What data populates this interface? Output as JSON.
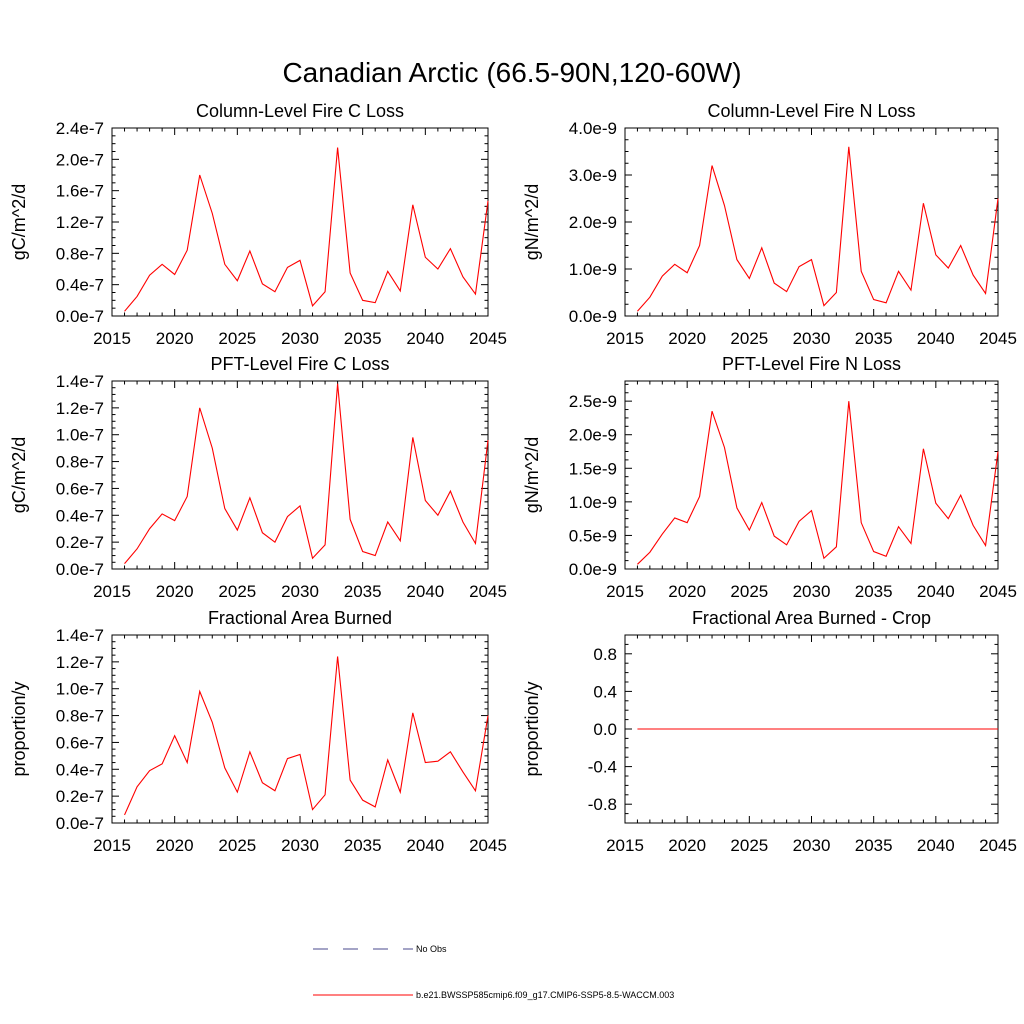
{
  "figure_title": "Canadian Arctic (66.5-90N,120-60W)",
  "chart_data": [
    {
      "type": "line",
      "title": "Column-Level Fire C Loss",
      "xlabel": "",
      "ylabel": "gC/m^2/d",
      "xlim": [
        2015,
        2045
      ],
      "ylim": [
        0,
        2.4e-07
      ],
      "yticks": [
        0,
        4e-08,
        8e-08,
        1.2e-07,
        1.6e-07,
        2e-07,
        2.4e-07
      ],
      "ytick_labels": [
        "0.0e-7",
        "0.4e-7",
        "0.8e-7",
        "1.2e-7",
        "1.6e-7",
        "2.0e-7",
        "2.4e-7"
      ],
      "xticks": [
        2015,
        2020,
        2025,
        2030,
        2035,
        2040,
        2045
      ],
      "xtick_labels": [
        "2015",
        "2020",
        "2025",
        "2030",
        "2035",
        "2040",
        "2045"
      ],
      "series": [
        {
          "name": "b.e21.BWSSP585cmip6.f09_g17.CMIP6-SSP5-8.5-WACCM.003",
          "color": "#ff0000",
          "x": [
            2016,
            2017,
            2018,
            2019,
            2020,
            2021,
            2022,
            2023,
            2024,
            2025,
            2026,
            2027,
            2028,
            2029,
            2030,
            2031,
            2032,
            2033,
            2034,
            2035,
            2036,
            2037,
            2038,
            2039,
            2040,
            2041,
            2042,
            2043,
            2044,
            2045
          ],
          "values": [
            6e-09,
            2.5e-08,
            5.2e-08,
            6.6e-08,
            5.3e-08,
            8.4e-08,
            1.8e-07,
            1.31e-07,
            6.6e-08,
            4.5e-08,
            8.3e-08,
            4.1e-08,
            3.1e-08,
            6.2e-08,
            7.1e-08,
            1.3e-08,
            3.1e-08,
            2.15e-07,
            5.5e-08,
            2e-08,
            1.7e-08,
            5.7e-08,
            3.2e-08,
            1.42e-07,
            7.5e-08,
            6e-08,
            8.6e-08,
            5e-08,
            2.8e-08,
            1.47e-07
          ]
        }
      ]
    },
    {
      "type": "line",
      "title": "Column-Level Fire N Loss",
      "xlabel": "",
      "ylabel": "gN/m^2/d",
      "xlim": [
        2015,
        2045
      ],
      "ylim": [
        0,
        4e-09
      ],
      "yticks": [
        0,
        1e-09,
        2e-09,
        3e-09,
        4e-09
      ],
      "ytick_labels": [
        "0.0e-9",
        "1.0e-9",
        "2.0e-9",
        "3.0e-9",
        "4.0e-9"
      ],
      "xticks": [
        2015,
        2020,
        2025,
        2030,
        2035,
        2040,
        2045
      ],
      "xtick_labels": [
        "2015",
        "2020",
        "2025",
        "2030",
        "2035",
        "2040",
        "2045"
      ],
      "series": [
        {
          "name": "b.e21.BWSSP585cmip6.f09_g17.CMIP6-SSP5-8.5-WACCM.003",
          "color": "#ff0000",
          "x": [
            2016,
            2017,
            2018,
            2019,
            2020,
            2021,
            2022,
            2023,
            2024,
            2025,
            2026,
            2027,
            2028,
            2029,
            2030,
            2031,
            2032,
            2033,
            2034,
            2035,
            2036,
            2037,
            2038,
            2039,
            2040,
            2041,
            2042,
            2043,
            2044,
            2045
          ],
          "values": [
            1e-10,
            4e-10,
            8.5e-10,
            1.1e-09,
            9.2e-10,
            1.5e-09,
            3.2e-09,
            2.35e-09,
            1.2e-09,
            8e-10,
            1.45e-09,
            7e-10,
            5.2e-10,
            1.05e-09,
            1.2e-09,
            2.2e-10,
            5e-10,
            3.6e-09,
            9.5e-10,
            3.5e-10,
            2.8e-10,
            9.5e-10,
            5.5e-10,
            2.4e-09,
            1.3e-09,
            1.02e-09,
            1.5e-09,
            8.7e-10,
            4.8e-10,
            2.5e-09
          ]
        }
      ]
    },
    {
      "type": "line",
      "title": "PFT-Level Fire C Loss",
      "xlabel": "",
      "ylabel": "gC/m^2/d",
      "xlim": [
        2015,
        2045
      ],
      "ylim": [
        0,
        1.4e-07
      ],
      "yticks": [
        0,
        2e-08,
        4e-08,
        6e-08,
        8e-08,
        1e-07,
        1.2e-07,
        1.4e-07
      ],
      "ytick_labels": [
        "0.0e-7",
        "0.2e-7",
        "0.4e-7",
        "0.6e-7",
        "0.8e-7",
        "1.0e-7",
        "1.2e-7",
        "1.4e-7"
      ],
      "xticks": [
        2015,
        2020,
        2025,
        2030,
        2035,
        2040,
        2045
      ],
      "xtick_labels": [
        "2015",
        "2020",
        "2025",
        "2030",
        "2035",
        "2040",
        "2045"
      ],
      "series": [
        {
          "name": "b.e21.BWSSP585cmip6.f09_g17.CMIP6-SSP5-8.5-WACCM.003",
          "color": "#ff0000",
          "x": [
            2016,
            2017,
            2018,
            2019,
            2020,
            2021,
            2022,
            2023,
            2024,
            2025,
            2026,
            2027,
            2028,
            2029,
            2030,
            2031,
            2032,
            2033,
            2034,
            2035,
            2036,
            2037,
            2038,
            2039,
            2040,
            2041,
            2042,
            2043,
            2044,
            2045
          ],
          "values": [
            4e-09,
            1.5e-08,
            3e-08,
            4.1e-08,
            3.6e-08,
            5.4e-08,
            1.2e-07,
            9e-08,
            4.5e-08,
            2.9e-08,
            5.3e-08,
            2.7e-08,
            2e-08,
            3.9e-08,
            4.7e-08,
            8e-09,
            1.8e-08,
            1.38e-07,
            3.7e-08,
            1.3e-08,
            1e-08,
            3.5e-08,
            2.1e-08,
            9.8e-08,
            5.1e-08,
            4e-08,
            5.8e-08,
            3.5e-08,
            1.9e-08,
            9.6e-08
          ]
        }
      ]
    },
    {
      "type": "line",
      "title": "PFT-Level Fire N Loss",
      "xlabel": "",
      "ylabel": "gN/m^2/d",
      "xlim": [
        2015,
        2045
      ],
      "ylim": [
        0,
        2.8e-09
      ],
      "yticks": [
        0,
        5e-10,
        1e-09,
        1.5e-09,
        2e-09,
        2.5e-09
      ],
      "ytick_labels": [
        "0.0e-9",
        "0.5e-9",
        "1.0e-9",
        "1.5e-9",
        "2.0e-9",
        "2.5e-9"
      ],
      "xticks": [
        2015,
        2020,
        2025,
        2030,
        2035,
        2040,
        2045
      ],
      "xtick_labels": [
        "2015",
        "2020",
        "2025",
        "2030",
        "2035",
        "2040",
        "2045"
      ],
      "series": [
        {
          "name": "b.e21.BWSSP585cmip6.f09_g17.CMIP6-SSP5-8.5-WACCM.003",
          "color": "#ff0000",
          "x": [
            2016,
            2017,
            2018,
            2019,
            2020,
            2021,
            2022,
            2023,
            2024,
            2025,
            2026,
            2027,
            2028,
            2029,
            2030,
            2031,
            2032,
            2033,
            2034,
            2035,
            2036,
            2037,
            2038,
            2039,
            2040,
            2041,
            2042,
            2043,
            2044,
            2045
          ],
          "values": [
            7e-11,
            2.5e-10,
            5.2e-10,
            7.6e-10,
            6.9e-10,
            1.08e-09,
            2.35e-09,
            1.81e-09,
            9.1e-10,
            5.8e-10,
            9.9e-10,
            4.9e-10,
            3.6e-10,
            7.1e-10,
            8.7e-10,
            1.6e-10,
            3.3e-10,
            2.5e-09,
            6.9e-10,
            2.6e-10,
            1.9e-10,
            6.3e-10,
            3.8e-10,
            1.79e-09,
            9.8e-10,
            7.5e-10,
            1.1e-09,
            6.5e-10,
            3.5e-10,
            1.75e-09
          ]
        }
      ]
    },
    {
      "type": "line",
      "title": "Fractional Area Burned",
      "xlabel": "",
      "ylabel": "proportion/y",
      "xlim": [
        2015,
        2045
      ],
      "ylim": [
        0,
        1.4e-07
      ],
      "yticks": [
        0,
        2e-08,
        4e-08,
        6e-08,
        8e-08,
        1e-07,
        1.2e-07,
        1.4e-07
      ],
      "ytick_labels": [
        "0.0e-7",
        "0.2e-7",
        "0.4e-7",
        "0.6e-7",
        "0.8e-7",
        "1.0e-7",
        "1.2e-7",
        "1.4e-7"
      ],
      "xticks": [
        2015,
        2020,
        2025,
        2030,
        2035,
        2040,
        2045
      ],
      "xtick_labels": [
        "2015",
        "2020",
        "2025",
        "2030",
        "2035",
        "2040",
        "2045"
      ],
      "series": [
        {
          "name": "b.e21.BWSSP585cmip6.f09_g17.CMIP6-SSP5-8.5-WACCM.003",
          "color": "#ff0000",
          "x": [
            2016,
            2017,
            2018,
            2019,
            2020,
            2021,
            2022,
            2023,
            2024,
            2025,
            2026,
            2027,
            2028,
            2029,
            2030,
            2031,
            2032,
            2033,
            2034,
            2035,
            2036,
            2037,
            2038,
            2039,
            2040,
            2041,
            2042,
            2043,
            2044,
            2045
          ],
          "values": [
            6e-09,
            2.7e-08,
            3.9e-08,
            4.4e-08,
            6.5e-08,
            4.5e-08,
            9.8e-08,
            7.5e-08,
            4.1e-08,
            2.3e-08,
            5.3e-08,
            3e-08,
            2.4e-08,
            4.8e-08,
            5.1e-08,
            1e-08,
            2.1e-08,
            1.24e-07,
            3.2e-08,
            1.7e-08,
            1.2e-08,
            4.7e-08,
            2.3e-08,
            8.2e-08,
            4.5e-08,
            4.6e-08,
            5.3e-08,
            3.8e-08,
            2.4e-08,
            8e-08
          ]
        }
      ]
    },
    {
      "type": "line",
      "title": "Fractional Area Burned - Crop",
      "xlabel": "",
      "ylabel": "proportion/y",
      "xlim": [
        2015,
        2045
      ],
      "ylim": [
        -1.0,
        1.0
      ],
      "yticks": [
        -0.8,
        -0.4,
        0.0,
        0.4,
        0.8
      ],
      "ytick_labels": [
        "-0.8",
        "-0.4",
        "0.0",
        "0.4",
        "0.8"
      ],
      "xticks": [
        2015,
        2020,
        2025,
        2030,
        2035,
        2040,
        2045
      ],
      "xtick_labels": [
        "2015",
        "2020",
        "2025",
        "2030",
        "2035",
        "2040",
        "2045"
      ],
      "series": [
        {
          "name": "b.e21.BWSSP585cmip6.f09_g17.CMIP6-SSP5-8.5-WACCM.003",
          "color": "#ff0000",
          "x": [
            2016,
            2017,
            2018,
            2019,
            2020,
            2021,
            2022,
            2023,
            2024,
            2025,
            2026,
            2027,
            2028,
            2029,
            2030,
            2031,
            2032,
            2033,
            2034,
            2035,
            2036,
            2037,
            2038,
            2039,
            2040,
            2041,
            2042,
            2043,
            2044,
            2045
          ],
          "values": [
            0,
            0,
            0,
            0,
            0,
            0,
            0,
            0,
            0,
            0,
            0,
            0,
            0,
            0,
            0,
            0,
            0,
            0,
            0,
            0,
            0,
            0,
            0,
            0,
            0,
            0,
            0,
            0,
            0,
            0
          ]
        }
      ]
    }
  ],
  "legend": [
    {
      "label": "No Obs",
      "color": "#4a4a8c",
      "style": "dashed"
    },
    {
      "label": "b.e21.BWSSP585cmip6.f09_g17.CMIP6-SSP5-8.5-WACCM.003",
      "color": "#ff0000",
      "style": "solid"
    }
  ]
}
